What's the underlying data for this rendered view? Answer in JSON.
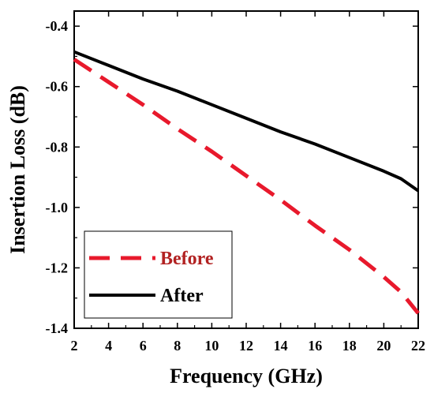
{
  "chart_data": {
    "type": "line",
    "title": "",
    "xlabel": "Frequency (GHz)",
    "ylabel": "Insertion Loss (dB)",
    "xlim": [
      2,
      22
    ],
    "ylim": [
      -1.4,
      -0.35
    ],
    "xticks": [
      2,
      4,
      6,
      8,
      10,
      12,
      14,
      16,
      18,
      20,
      22
    ],
    "yticks": [
      -1.4,
      -1.2,
      -1.0,
      -0.8,
      -0.6,
      -0.4
    ],
    "legend_position": "bottom-left",
    "grid": false,
    "series": [
      {
        "name": "Before",
        "color": "#e8192c",
        "text_color": "#b22222",
        "style": "dashed",
        "x": [
          2,
          4,
          6,
          8,
          10,
          12,
          14,
          16,
          18,
          20,
          21,
          22
        ],
        "y": [
          -0.51,
          -0.585,
          -0.66,
          -0.74,
          -0.815,
          -0.895,
          -0.975,
          -1.06,
          -1.14,
          -1.23,
          -1.28,
          -1.35
        ]
      },
      {
        "name": "After",
        "color": "#000000",
        "text_color": "#000000",
        "style": "solid",
        "x": [
          2,
          4,
          6,
          8,
          10,
          12,
          14,
          16,
          18,
          20,
          21,
          22
        ],
        "y": [
          -0.485,
          -0.53,
          -0.575,
          -0.615,
          -0.66,
          -0.705,
          -0.75,
          -0.79,
          -0.835,
          -0.88,
          -0.905,
          -0.945
        ]
      }
    ]
  }
}
